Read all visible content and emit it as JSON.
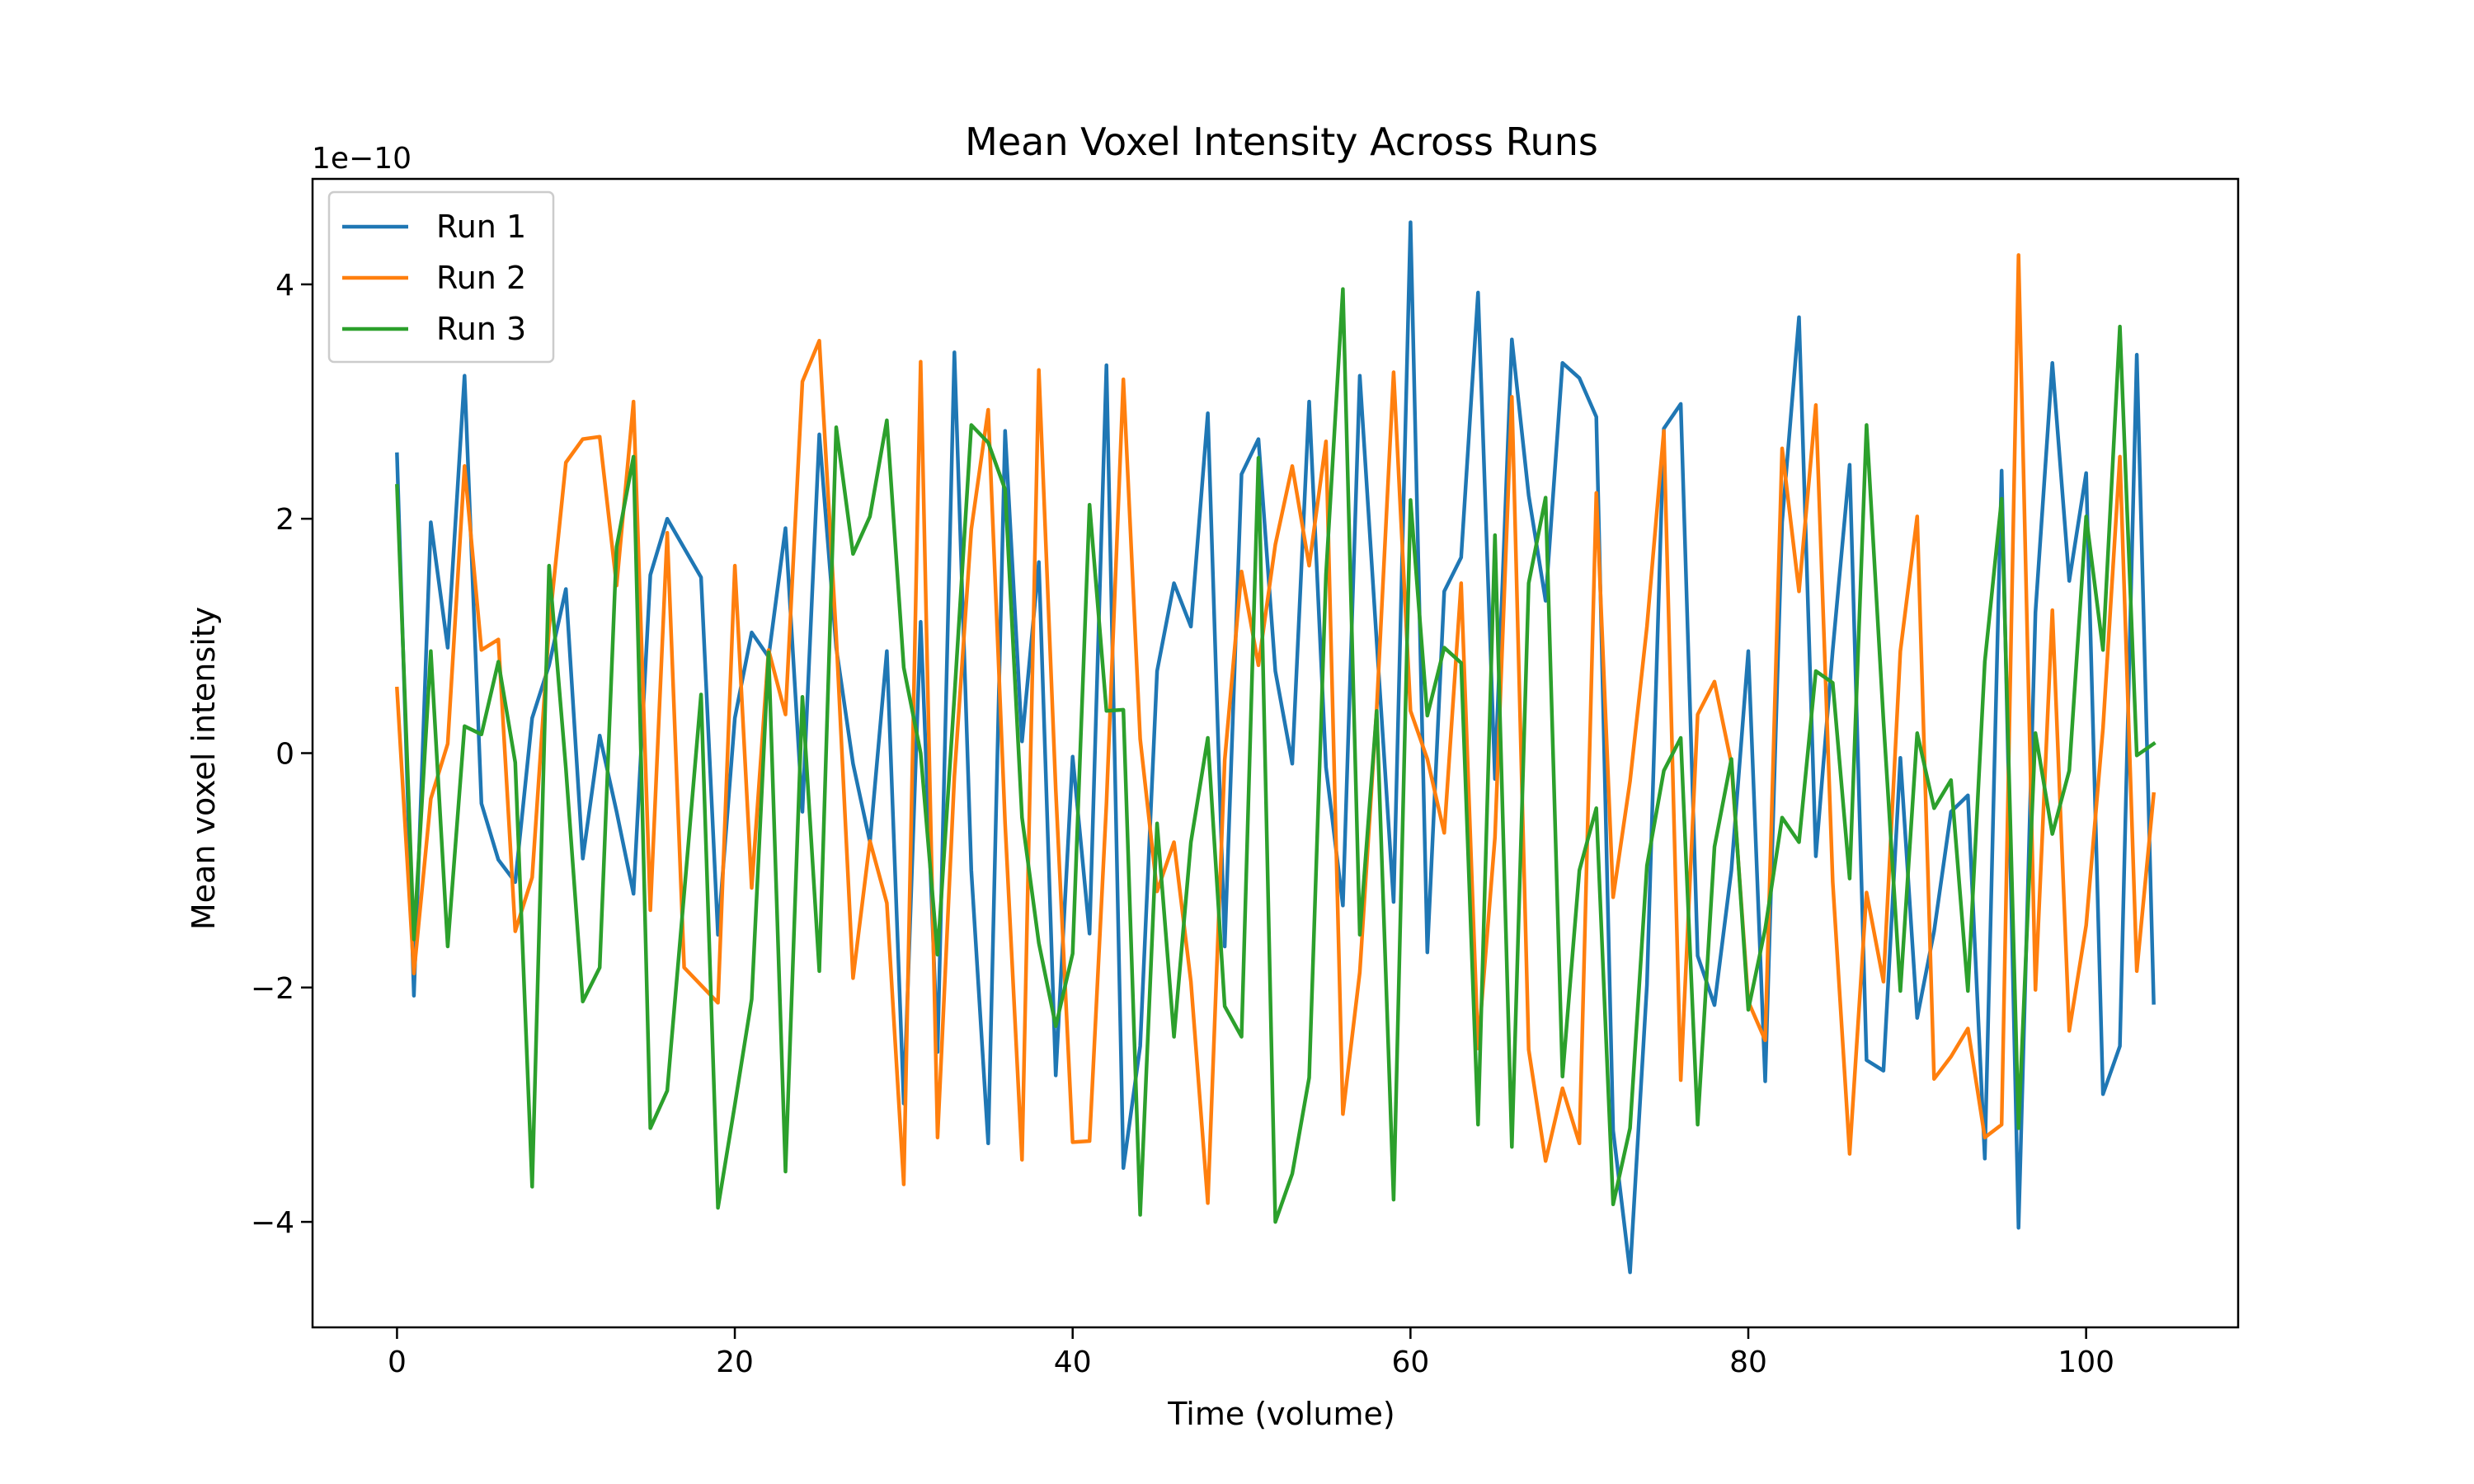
{
  "chart_data": {
    "type": "line",
    "title": "Mean Voxel Intensity Across Runs",
    "xlabel": "Time (volume)",
    "ylabel": "Mean voxel intensity",
    "y_offset_text": "1e−10",
    "xlim": [
      -5,
      109
    ],
    "ylim": [
      -4.9,
      4.9
    ],
    "x_ticks": [
      0,
      20,
      40,
      60,
      80,
      100
    ],
    "y_ticks": [
      -4,
      -2,
      0,
      2,
      4
    ],
    "y_tick_labels": [
      "−4",
      "−2",
      "0",
      "2",
      "4"
    ],
    "grid": false,
    "legend_position": "upper-left",
    "x": [
      0,
      1,
      2,
      3,
      4,
      5,
      6,
      7,
      8,
      9,
      10,
      11,
      12,
      13,
      14,
      15,
      16,
      17,
      18,
      19,
      20,
      21,
      22,
      23,
      24,
      25,
      26,
      27,
      28,
      29,
      30,
      31,
      32,
      33,
      34,
      35,
      36,
      37,
      38,
      39,
      40,
      41,
      42,
      43,
      44,
      45,
      46,
      47,
      48,
      49,
      50,
      51,
      52,
      53,
      54,
      55,
      56,
      57,
      58,
      59,
      60,
      61,
      62,
      63,
      64,
      65,
      66,
      67,
      68,
      69,
      70,
      71,
      72,
      73,
      74,
      75,
      76,
      77,
      78,
      79,
      80,
      81,
      82,
      83,
      84,
      85,
      86,
      87,
      88,
      89,
      90,
      91,
      92,
      93,
      94,
      95,
      96,
      97,
      98,
      99,
      100,
      101,
      102,
      103,
      104
    ],
    "series": [
      {
        "name": "Run 1",
        "color": "#1f77b4",
        "values": [
          2.55,
          -2.07,
          1.97,
          0.9,
          3.22,
          -0.43,
          -0.91,
          -1.1,
          0.3,
          0.75,
          1.4,
          -0.9,
          0.15,
          -0.5,
          -1.2,
          1.52,
          2.0,
          1.75,
          1.5,
          -1.55,
          0.3,
          1.03,
          0.82,
          1.92,
          -0.5,
          2.72,
          0.9,
          -0.09,
          -0.76,
          0.87,
          -2.99,
          1.12,
          -2.55,
          3.42,
          -1.0,
          -3.33,
          2.75,
          0.1,
          1.63,
          -2.75,
          -0.03,
          -1.54,
          3.31,
          -3.54,
          -2.5,
          0.7,
          1.45,
          1.08,
          2.9,
          -1.65,
          2.38,
          2.68,
          0.7,
          -0.09,
          3.0,
          -0.12,
          -1.3,
          3.22,
          0.95,
          -1.27,
          4.53,
          -1.7,
          1.38,
          1.67,
          3.93,
          -0.22,
          3.53,
          2.2,
          1.3,
          3.33,
          3.2,
          2.87,
          -3.22,
          -4.43,
          -1.98,
          2.77,
          2.98,
          -1.73,
          -2.15,
          -1.0,
          0.87,
          -2.8,
          1.97,
          3.72,
          -0.88,
          0.88,
          2.46,
          -2.62,
          -2.71,
          -0.04,
          -2.26,
          -1.52,
          -0.5,
          -0.36,
          -3.46,
          2.41,
          -4.05,
          1.2,
          3.33,
          1.47,
          2.39,
          -2.91,
          -2.5,
          3.4,
          -2.13
        ]
      },
      {
        "name": "Run 2",
        "color": "#ff7f0e",
        "values": [
          0.55,
          -1.88,
          -0.39,
          0.08,
          2.45,
          0.88,
          0.97,
          -1.52,
          -1.06,
          1.07,
          2.48,
          2.68,
          2.7,
          1.43,
          3.0,
          -1.34,
          1.88,
          -1.83,
          -1.98,
          -2.13,
          1.6,
          -1.15,
          0.88,
          0.33,
          3.17,
          3.52,
          1.0,
          -1.92,
          -0.75,
          -1.28,
          -3.68,
          3.34,
          -3.28,
          -0.2,
          1.91,
          2.93,
          -0.6,
          -3.47,
          3.27,
          -0.31,
          -3.32,
          -3.31,
          -0.43,
          3.19,
          0.12,
          -1.18,
          -0.76,
          -1.95,
          -3.84,
          -0.06,
          1.55,
          0.75,
          1.78,
          2.45,
          1.6,
          2.66,
          -3.08,
          -1.87,
          0.38,
          3.25,
          0.36,
          -0.05,
          -0.68,
          1.45,
          -2.52,
          -0.72,
          3.04,
          -2.53,
          -3.48,
          -2.86,
          -3.33,
          2.22,
          -1.23,
          -0.24,
          1.08,
          2.75,
          -2.79,
          0.33,
          0.61,
          -0.09,
          -2.12,
          -2.45,
          2.6,
          1.38,
          2.97,
          -1.1,
          -3.42,
          -1.19,
          -1.95,
          0.87,
          2.02,
          -2.78,
          -2.59,
          -2.35,
          -3.28,
          -3.17,
          4.25,
          -2.02,
          1.22,
          -2.37,
          -1.47,
          0.21,
          2.53,
          -1.86,
          -0.35
        ]
      },
      {
        "name": "Run 3",
        "color": "#2ca02c",
        "values": [
          2.28,
          -1.59,
          0.87,
          -1.65,
          0.23,
          0.16,
          0.78,
          -0.08,
          -3.7,
          1.6,
          -0.13,
          -2.12,
          -1.83,
          1.76,
          2.53,
          -3.2,
          -2.88,
          -1.2,
          0.5,
          -3.88,
          -3.0,
          -2.1,
          0.86,
          -3.57,
          0.48,
          -1.86,
          2.78,
          1.7,
          2.02,
          2.84,
          0.73,
          0.0,
          -1.72,
          0.48,
          2.8,
          2.65,
          2.25,
          -0.55,
          -1.62,
          -2.33,
          -1.71,
          2.12,
          0.36,
          0.37,
          -3.94,
          -0.6,
          -2.42,
          -0.76,
          0.13,
          -2.16,
          -2.42,
          2.52,
          -4.0,
          -3.59,
          -2.77,
          1.52,
          3.96,
          -1.55,
          0.36,
          -3.81,
          2.16,
          0.32,
          0.9,
          0.77,
          -3.17,
          1.86,
          -3.36,
          1.45,
          2.18,
          -2.76,
          -1.0,
          -0.47,
          -3.85,
          -3.2,
          -0.96,
          -0.15,
          0.13,
          -3.17,
          -0.8,
          -0.05,
          -2.19,
          -1.5,
          -0.55,
          -0.76,
          0.7,
          0.6,
          -1.07,
          2.8,
          0.28,
          -2.03,
          0.17,
          -0.47,
          -0.23,
          -2.03,
          0.78,
          2.17,
          -3.2,
          0.17,
          -0.69,
          -0.15,
          2.02,
          0.88,
          3.64,
          -0.02,
          0.08
        ]
      }
    ]
  }
}
